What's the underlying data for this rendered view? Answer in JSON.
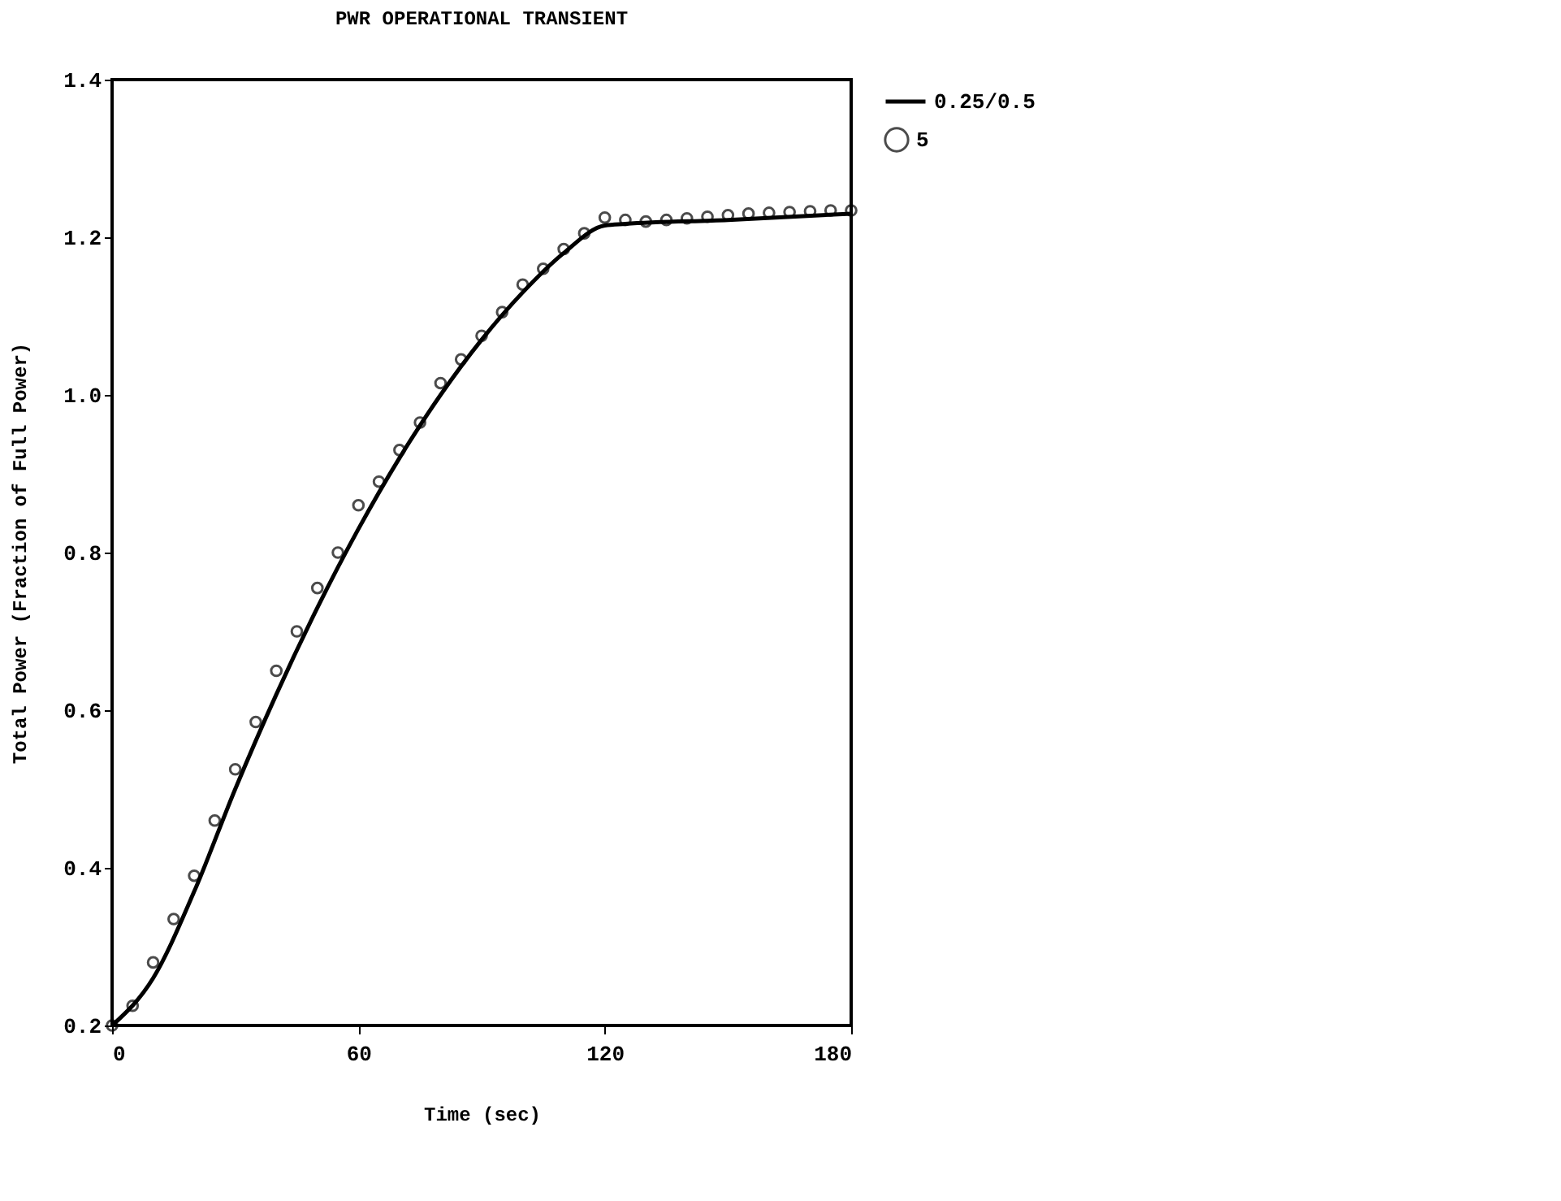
{
  "chart_data": {
    "type": "line",
    "title": "PWR OPERATIONAL TRANSIENT",
    "xlabel": "Time (sec)",
    "ylabel": "Total Power (Fraction of Full Power)",
    "xlim": [
      0,
      180
    ],
    "xticks": [
      0,
      60,
      120,
      180
    ],
    "ylim": [
      0.2,
      1.4
    ],
    "yticks": [
      {
        "value": 0.2,
        "label": "0.2"
      },
      {
        "value": 0.4,
        "label": "0.4"
      },
      {
        "value": 0.6,
        "label": "0.6"
      },
      {
        "value": 0.8,
        "label": "0.8"
      },
      {
        "value": 1.0,
        "label": "1.0"
      },
      {
        "value": 1.2,
        "label": "1.2"
      },
      {
        "value": 1.4,
        "label": "1.4"
      }
    ],
    "grid": false,
    "legend": "right",
    "series": [
      {
        "name": "0.25/0.5",
        "color": "#000000",
        "line_style": "solid",
        "marker": "none",
        "x": [
          0,
          10,
          20,
          30,
          40,
          50,
          60,
          70,
          80,
          90,
          100,
          110,
          120,
          125,
          150,
          180
        ],
        "values": [
          0.2,
          0.26,
          0.37,
          0.5,
          0.62,
          0.73,
          0.83,
          0.92,
          1.0,
          1.07,
          1.13,
          1.18,
          1.215,
          1.217,
          1.222,
          1.23
        ]
      },
      {
        "name": "5",
        "type": "scatter",
        "color": "#000000",
        "marker": "circle",
        "x": [
          0,
          5,
          10,
          15,
          20,
          25,
          30,
          35,
          40,
          45,
          50,
          55,
          60,
          65,
          70,
          75,
          80,
          85,
          90,
          95,
          100,
          105,
          110,
          115,
          120,
          125,
          130,
          135,
          140,
          145,
          150,
          155,
          160,
          165,
          170,
          175,
          180
        ],
        "values": [
          0.2,
          0.225,
          0.28,
          0.335,
          0.39,
          0.46,
          0.525,
          0.585,
          0.65,
          0.7,
          0.755,
          0.8,
          0.86,
          0.89,
          0.93,
          0.965,
          1.015,
          1.045,
          1.075,
          1.105,
          1.14,
          1.16,
          1.185,
          1.205,
          1.225,
          1.222,
          1.22,
          1.222,
          1.224,
          1.226,
          1.228,
          1.23,
          1.231,
          1.232,
          1.233,
          1.234,
          1.234
        ]
      }
    ]
  }
}
